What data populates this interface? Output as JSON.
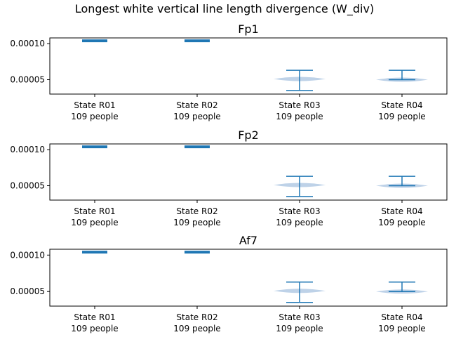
{
  "suptitle": "Longest white vertical line length divergence (W_div)",
  "colors": {
    "accent": "#1f77b4",
    "violin": "#b7cde6",
    "axis": "#000000"
  },
  "chart_data": [
    {
      "type": "violin",
      "title": "Fp1",
      "categories": [
        {
          "label": "State R01",
          "sublabel": "109 people"
        },
        {
          "label": "State R02",
          "sublabel": "109 people"
        },
        {
          "label": "State R03",
          "sublabel": "109 people"
        },
        {
          "label": "State R04",
          "sublabel": "109 people"
        }
      ],
      "series": [
        {
          "min": 0.000104,
          "max": 0.000104,
          "median": 0.000104
        },
        {
          "min": 0.000104,
          "max": 0.000104,
          "median": 0.000104
        },
        {
          "min": 3.5e-05,
          "max": 6.3e-05,
          "median": 5.1e-05
        },
        {
          "min": 5e-05,
          "max": 6.3e-05,
          "median": 5e-05
        }
      ],
      "yticks": [
        "0.00005",
        "0.00010"
      ],
      "ylim": [
        3e-05,
        0.000108
      ],
      "grid": false
    },
    {
      "type": "violin",
      "title": "Fp2",
      "categories": [
        {
          "label": "State R01",
          "sublabel": "109 people"
        },
        {
          "label": "State R02",
          "sublabel": "109 people"
        },
        {
          "label": "State R03",
          "sublabel": "109 people"
        },
        {
          "label": "State R04",
          "sublabel": "109 people"
        }
      ],
      "series": [
        {
          "min": 0.000104,
          "max": 0.000104,
          "median": 0.000104
        },
        {
          "min": 0.000104,
          "max": 0.000104,
          "median": 0.000104
        },
        {
          "min": 3.5e-05,
          "max": 6.3e-05,
          "median": 5.1e-05
        },
        {
          "min": 5e-05,
          "max": 6.3e-05,
          "median": 5e-05
        }
      ],
      "yticks": [
        "0.00005",
        "0.00010"
      ],
      "ylim": [
        3e-05,
        0.000108
      ],
      "grid": false
    },
    {
      "type": "violin",
      "title": "Af7",
      "categories": [
        {
          "label": "State R01",
          "sublabel": "109 people"
        },
        {
          "label": "State R02",
          "sublabel": "109 people"
        },
        {
          "label": "State R03",
          "sublabel": "109 people"
        },
        {
          "label": "State R04",
          "sublabel": "109 people"
        }
      ],
      "series": [
        {
          "min": 0.000104,
          "max": 0.000104,
          "median": 0.000104
        },
        {
          "min": 0.000104,
          "max": 0.000104,
          "median": 0.000104
        },
        {
          "min": 3.5e-05,
          "max": 6.3e-05,
          "median": 5.1e-05
        },
        {
          "min": 5e-05,
          "max": 6.3e-05,
          "median": 5e-05
        }
      ],
      "yticks": [
        "0.00005",
        "0.00010"
      ],
      "ylim": [
        3e-05,
        0.000108
      ],
      "grid": false
    }
  ]
}
